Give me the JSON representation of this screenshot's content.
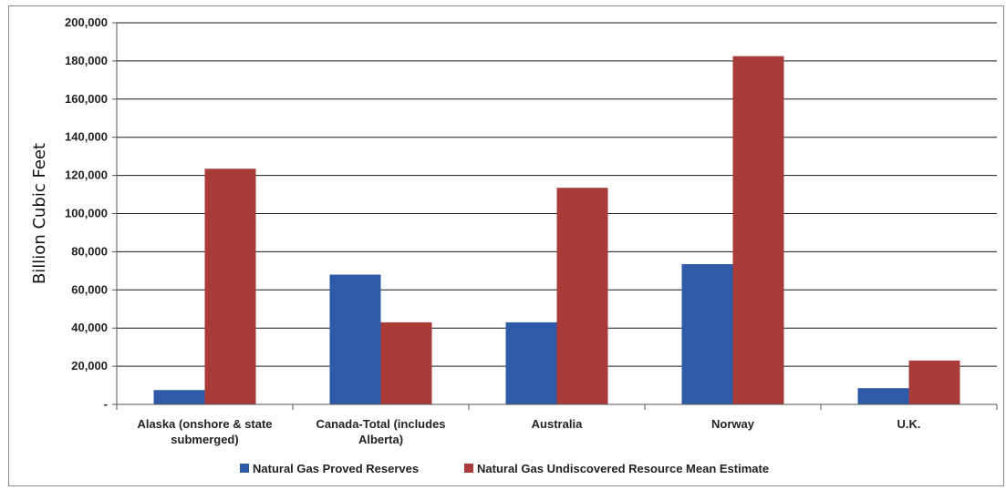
{
  "chart_data": {
    "type": "bar",
    "categories": [
      [
        "Alaska (onshore & state",
        "submerged)"
      ],
      [
        "Canada-Total (includes",
        "Alberta)"
      ],
      [
        "Australia"
      ],
      [
        "Norway"
      ],
      [
        "U.K."
      ]
    ],
    "series": [
      {
        "name": "Natural Gas Proved Reserves",
        "color": "#2e5aa8",
        "values": [
          7500,
          68000,
          43000,
          73500,
          8500
        ]
      },
      {
        "name": "Natural Gas Undiscovered Resource Mean Estimate",
        "color": "#a83a37",
        "values": [
          123500,
          43000,
          113500,
          182500,
          23000
        ]
      }
    ],
    "ylabel": "Billion Cubic Feet",
    "ylim": [
      0,
      200000
    ],
    "yticks": [
      {
        "value": 0,
        "label": "-"
      },
      {
        "value": 20000,
        "label": "20,000"
      },
      {
        "value": 40000,
        "label": "40,000"
      },
      {
        "value": 60000,
        "label": "60,000"
      },
      {
        "value": 80000,
        "label": "80,000"
      },
      {
        "value": 100000,
        "label": "100,000"
      },
      {
        "value": 120000,
        "label": "120,000"
      },
      {
        "value": 140000,
        "label": "140,000"
      },
      {
        "value": 160000,
        "label": "160,000"
      },
      {
        "value": 180000,
        "label": "180,000"
      },
      {
        "value": 200000,
        "label": "200,000"
      }
    ],
    "grid": true,
    "legend_position": "bottom"
  }
}
